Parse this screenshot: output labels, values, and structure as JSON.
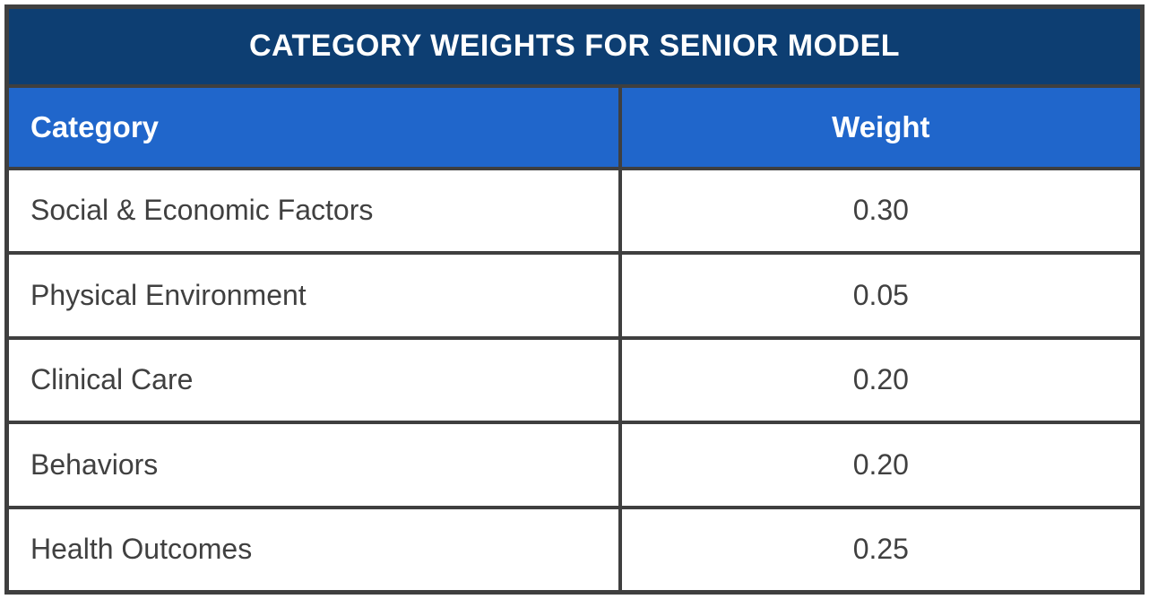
{
  "table": {
    "title": "CATEGORY WEIGHTS FOR SENIOR MODEL",
    "columns": [
      {
        "label": "Category",
        "align": "left"
      },
      {
        "label": "Weight",
        "align": "center"
      }
    ],
    "rows": [
      {
        "category": "Social & Economic Factors",
        "weight": "0.30"
      },
      {
        "category": "Physical Environment",
        "weight": "0.05"
      },
      {
        "category": "Clinical Care",
        "weight": "0.20"
      },
      {
        "category": "Behaviors",
        "weight": "0.20"
      },
      {
        "category": "Health Outcomes",
        "weight": "0.25"
      }
    ]
  },
  "colors": {
    "title_bg": "#0d3e72",
    "header_bg": "#2066cb",
    "border": "#3f3f3f",
    "header_text": "#ffffff",
    "body_text": "#404040"
  },
  "chart_data": {
    "type": "table",
    "title": "CATEGORY WEIGHTS FOR SENIOR MODEL",
    "columns": [
      "Category",
      "Weight"
    ],
    "rows": [
      [
        "Social & Economic Factors",
        0.3
      ],
      [
        "Physical Environment",
        0.05
      ],
      [
        "Clinical Care",
        0.2
      ],
      [
        "Behaviors",
        0.2
      ],
      [
        "Health Outcomes",
        0.25
      ]
    ]
  }
}
